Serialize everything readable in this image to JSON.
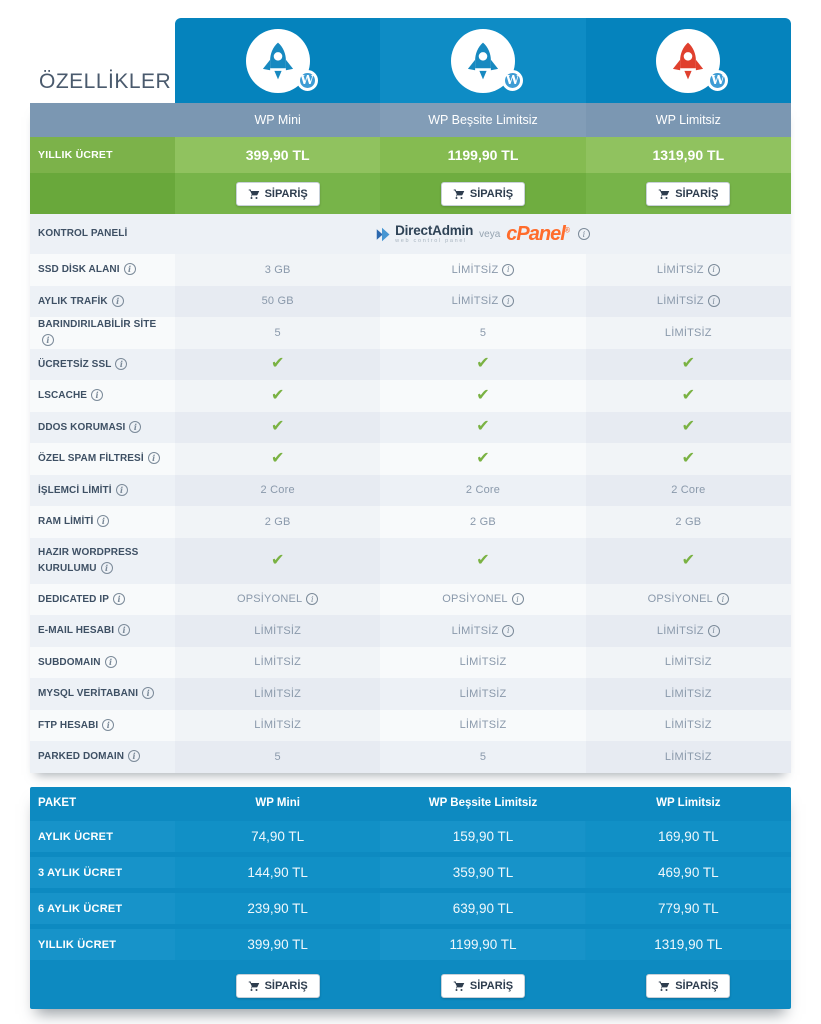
{
  "page": {
    "features_title": "ÖZELLİKLER"
  },
  "colors": {
    "tab_dark": "#0583bd",
    "tab_light": "#0e8cc5",
    "names_dark": "#7b97b2",
    "names_light": "#829db7",
    "yearly_dark": "#7cb24a",
    "yearly_mid": "#85bb51",
    "yearly_light": "#90c25f",
    "order_dark": "#69a83b",
    "order_mid": "#6fad40",
    "order_light": "#77b449",
    "row_odd": "#edf1f6",
    "row_even": "#f8fafb",
    "check_green": "#7ab243",
    "bottom_base": "#0d8ac1",
    "bottom_cell_light": "#1793c9",
    "bottom_cell_mid": "#1190c6",
    "label_text": "#3e5064",
    "value_text": "#8a99ab",
    "cpanel_orange": "#ff6c2c",
    "rocket_blue": "#1789c0",
    "rocket_red": "#e0402e",
    "wp_badge_blue": "#3e9cd4"
  },
  "plans": [
    {
      "name": "WP Mini",
      "rocket": "#1789c0",
      "yearly_price": "399,90 TL"
    },
    {
      "name": "WP Beşsite Limitsiz",
      "rocket": "#1789c0",
      "yearly_price": "1199,90 TL"
    },
    {
      "name": "WP Limitsiz",
      "rocket": "#e0402e",
      "yearly_price": "1319,90 TL"
    }
  ],
  "labels": {
    "yearly": "YILLIK ÜCRET",
    "order": "SİPARİŞ",
    "paket": "PAKET"
  },
  "control_panel_logos": {
    "directadmin": "DirectAdmin",
    "directadmin_sub": "web control panel",
    "connector": "veya",
    "cpanel": "cPanel",
    "registered": "®"
  },
  "features": [
    {
      "label": "KONTROL PANELİ",
      "info": false,
      "type": "logos"
    },
    {
      "label": "SSD DİSK ALANI",
      "info": true,
      "values": [
        {
          "text": "3 GB"
        },
        {
          "text": "LİMİTSİZ",
          "info": true
        },
        {
          "text": "LİMİTSİZ",
          "info": true
        }
      ]
    },
    {
      "label": "AYLIK TRAFİK",
      "info": true,
      "values": [
        {
          "text": "50 GB"
        },
        {
          "text": "LİMİTSİZ",
          "info": true
        },
        {
          "text": "LİMİTSİZ",
          "info": true
        }
      ]
    },
    {
      "label": "BARINDIRILABİLİR SİTE",
      "info": true,
      "values": [
        {
          "text": "5"
        },
        {
          "text": "5"
        },
        {
          "text": "LİMİTSİZ"
        }
      ]
    },
    {
      "label": "ÜCRETSİZ SSL",
      "info": true,
      "values": [
        {
          "check": true
        },
        {
          "check": true
        },
        {
          "check": true
        }
      ]
    },
    {
      "label": "LSCACHE",
      "info": true,
      "values": [
        {
          "check": true
        },
        {
          "check": true
        },
        {
          "check": true
        }
      ]
    },
    {
      "label": "DDOS KORUMASI",
      "info": true,
      "values": [
        {
          "check": true
        },
        {
          "check": true
        },
        {
          "check": true
        }
      ]
    },
    {
      "label": "ÖZEL SPAM FİLTRESİ",
      "info": true,
      "values": [
        {
          "check": true
        },
        {
          "check": true
        },
        {
          "check": true
        }
      ]
    },
    {
      "label": "İŞLEMCİ LİMİTİ",
      "info": true,
      "values": [
        {
          "text": "2 Core"
        },
        {
          "text": "2 Core"
        },
        {
          "text": "2 Core"
        }
      ]
    },
    {
      "label": "RAM LİMİTİ",
      "info": true,
      "values": [
        {
          "text": "2 GB"
        },
        {
          "text": "2 GB"
        },
        {
          "text": "2 GB"
        }
      ]
    },
    {
      "label": "HAZIR WORDPRESS KURULUMU",
      "info": true,
      "tall": true,
      "values": [
        {
          "check": true
        },
        {
          "check": true
        },
        {
          "check": true
        }
      ]
    },
    {
      "label": "DEDICATED IP",
      "info": true,
      "values": [
        {
          "text": "OPSİYONEL",
          "info": true
        },
        {
          "text": "OPSİYONEL",
          "info": true
        },
        {
          "text": "OPSİYONEL",
          "info": true
        }
      ]
    },
    {
      "label": "E-MAIL HESABI",
      "info": true,
      "values": [
        {
          "text": "LİMİTSİZ"
        },
        {
          "text": "LİMİTSİZ",
          "info": true
        },
        {
          "text": "LİMİTSİZ",
          "info": true
        }
      ]
    },
    {
      "label": "SUBDOMAIN",
      "info": true,
      "values": [
        {
          "text": "LİMİTSİZ"
        },
        {
          "text": "LİMİTSİZ"
        },
        {
          "text": "LİMİTSİZ"
        }
      ]
    },
    {
      "label": "MYSQL VERİTABANI",
      "info": true,
      "values": [
        {
          "text": "LİMİTSİZ"
        },
        {
          "text": "LİMİTSİZ"
        },
        {
          "text": "LİMİTSİZ"
        }
      ]
    },
    {
      "label": "FTP HESABI",
      "info": true,
      "values": [
        {
          "text": "LİMİTSİZ"
        },
        {
          "text": "LİMİTSİZ"
        },
        {
          "text": "LİMİTSİZ"
        }
      ]
    },
    {
      "label": "PARKED DOMAIN",
      "info": true,
      "values": [
        {
          "text": "5"
        },
        {
          "text": "5"
        },
        {
          "text": "LİMİTSİZ"
        }
      ]
    }
  ],
  "packages_table": {
    "header": [
      "PAKET",
      "WP Mini",
      "WP Beşsite Limitsiz",
      "WP Limitsiz"
    ],
    "rows": [
      {
        "label": "AYLIK ÜCRET",
        "values": [
          "74,90 TL",
          "159,90 TL",
          "169,90 TL"
        ]
      },
      {
        "label": "3 AYLIK ÜCRET",
        "values": [
          "144,90 TL",
          "359,90 TL",
          "469,90 TL"
        ]
      },
      {
        "label": "6 AYLIK ÜCRET",
        "values": [
          "239,90 TL",
          "639,90 TL",
          "779,90 TL"
        ]
      },
      {
        "label": "YILLIK ÜCRET",
        "values": [
          "399,90 TL",
          "1199,90 TL",
          "1319,90 TL"
        ]
      }
    ]
  }
}
